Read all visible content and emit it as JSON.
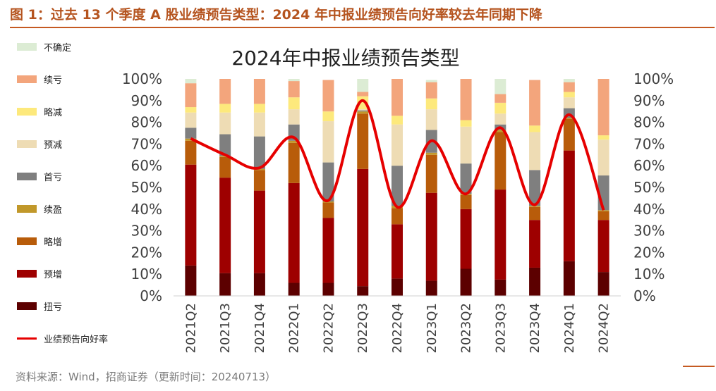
{
  "header": {
    "figure_title": "图 1：过去 13 个季度 A 股业绩预告类型：2024 年中报业绩预告向好率较去年同期下降"
  },
  "footer": {
    "source": "资料来源：Wind，招商证券（更新时间：20240713）"
  },
  "chart_data": {
    "type": "bar",
    "stacked": true,
    "title": "2024年中报业绩预告类型",
    "categories": [
      "2021Q2",
      "2021Q3",
      "2021Q4",
      "2022Q1",
      "2022Q2",
      "2022Q3",
      "2022Q4",
      "2023Q1",
      "2023Q2",
      "2023Q3",
      "2023Q4",
      "2024Q1",
      "2024Q2"
    ],
    "ylim": [
      0,
      100
    ],
    "y_ticks": [
      "0%",
      "10%",
      "20%",
      "30%",
      "40%",
      "50%",
      "60%",
      "70%",
      "80%",
      "90%",
      "100%"
    ],
    "y2_ticks": [
      "0%",
      "10%",
      "20%",
      "30%",
      "40%",
      "50%",
      "60%",
      "70%",
      "80%",
      "90%",
      "100%"
    ],
    "legend_position": "left",
    "series": [
      {
        "name": "扭亏",
        "color": "#5c0000",
        "values": [
          14,
          10.5,
          10.5,
          6,
          6,
          4.5,
          8,
          7,
          12.5,
          7.5,
          13,
          16,
          11
        ]
      },
      {
        "name": "预增",
        "color": "#9e0000",
        "values": [
          46.5,
          44,
          38,
          46,
          30,
          54,
          25,
          40.5,
          27.5,
          41.5,
          22,
          51,
          24
        ]
      },
      {
        "name": "略增",
        "color": "#b85c0a",
        "values": [
          11,
          9.5,
          9.5,
          18.5,
          7,
          25.5,
          7.5,
          17.5,
          6.5,
          26.5,
          6,
          14.5,
          4
        ]
      },
      {
        "name": "续盈",
        "color": "#c1982a",
        "values": [
          1,
          0.5,
          0.5,
          1,
          0.5,
          1,
          1,
          1,
          0.5,
          1,
          0.5,
          0.5,
          0.5
        ]
      },
      {
        "name": "首亏",
        "color": "#7f7f7f",
        "values": [
          5,
          10,
          15,
          7.5,
          18,
          0.5,
          18.5,
          10.5,
          14,
          2.5,
          16.5,
          4.5,
          16
        ]
      },
      {
        "name": "预减",
        "color": "#eedcb4",
        "values": [
          7,
          10,
          11,
          7,
          19,
          0.5,
          19,
          9.5,
          17,
          5,
          17.5,
          5,
          16.5
        ]
      },
      {
        "name": "略减",
        "color": "#fde97c",
        "values": [
          2.5,
          4,
          4,
          5.5,
          4.5,
          6,
          4,
          5,
          3,
          5,
          3,
          2.5,
          2
        ]
      },
      {
        "name": "续亏",
        "color": "#f3a57c",
        "values": [
          11,
          11.5,
          11.5,
          7.5,
          14.5,
          2,
          17,
          7.5,
          19,
          4,
          21,
          4.5,
          26
        ]
      },
      {
        "name": "不确定",
        "color": "#dcecd4",
        "values": [
          2,
          0,
          0,
          1,
          0,
          6,
          0,
          1,
          0,
          7,
          0,
          1.5,
          0
        ]
      }
    ],
    "line_series": {
      "name": "业绩预告向好率",
      "color": "#e60000",
      "values": [
        72.5,
        65,
        59,
        73,
        44,
        90,
        41,
        71.5,
        47,
        77.5,
        42,
        83.5,
        39.5
      ]
    }
  }
}
